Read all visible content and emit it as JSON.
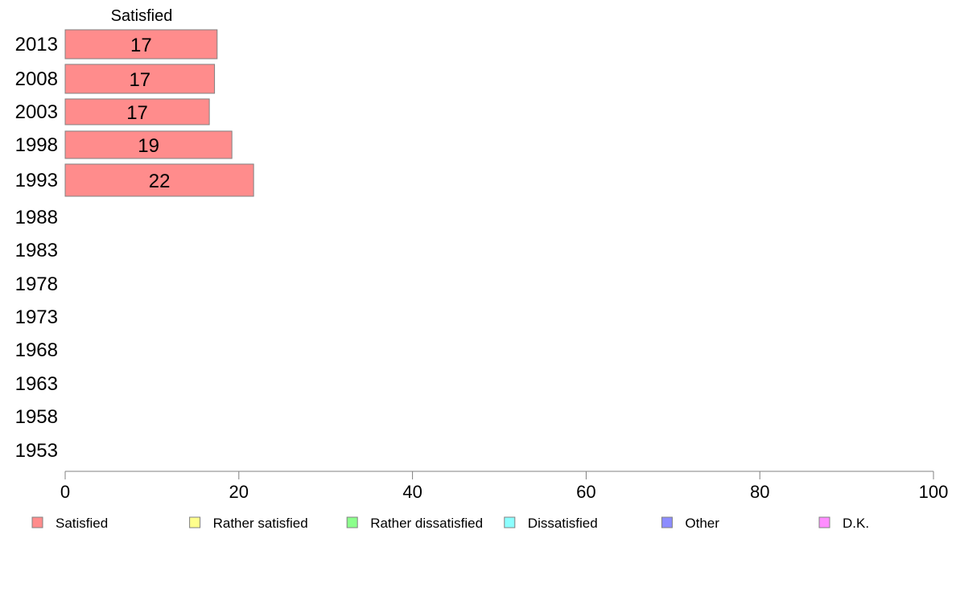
{
  "chart_data": {
    "type": "bar",
    "orientation": "horizontal",
    "stacked": true,
    "title": "",
    "xlabel": "",
    "ylabel": "",
    "xlim": [
      0,
      100
    ],
    "x_ticks": [
      "0",
      "20",
      "40",
      "60",
      "80",
      "100"
    ],
    "categories": [
      "2013",
      "2008",
      "2003",
      "1998",
      "1993",
      "1988",
      "1983",
      "1978",
      "1973",
      "1968",
      "1963",
      "1958",
      "1953"
    ],
    "column_header": "Satisfied",
    "series": [
      {
        "name": "Satisfied",
        "color": "#ff8c8c",
        "values": [
          17.5,
          17.2,
          16.6,
          19.2,
          21.7,
          null,
          null,
          null,
          null,
          null,
          null,
          null,
          null
        ],
        "labels": [
          "17",
          "17",
          "17",
          "19",
          "22",
          "",
          "",
          "",
          "",
          "",
          "",
          "",
          ""
        ]
      },
      {
        "name": "Rather satisfied",
        "color": "#ffff8c",
        "values": [
          null,
          null,
          null,
          null,
          null,
          null,
          null,
          null,
          null,
          null,
          null,
          null,
          null
        ]
      },
      {
        "name": "Rather dissatisfied",
        "color": "#8cff8c",
        "values": [
          null,
          null,
          null,
          null,
          null,
          null,
          null,
          null,
          null,
          null,
          null,
          null,
          null
        ]
      },
      {
        "name": "Dissatisfied",
        "color": "#8cffff",
        "values": [
          null,
          null,
          null,
          null,
          null,
          null,
          null,
          null,
          null,
          null,
          null,
          null,
          null
        ]
      },
      {
        "name": "Other",
        "color": "#8c8cff",
        "values": [
          null,
          null,
          null,
          null,
          null,
          null,
          null,
          null,
          null,
          null,
          null,
          null,
          null
        ]
      },
      {
        "name": "D.K.",
        "color": "#ff8cff",
        "values": [
          null,
          null,
          null,
          null,
          null,
          null,
          null,
          null,
          null,
          null,
          null,
          null,
          null
        ]
      }
    ],
    "grid": false,
    "legend_position": "bottom"
  }
}
